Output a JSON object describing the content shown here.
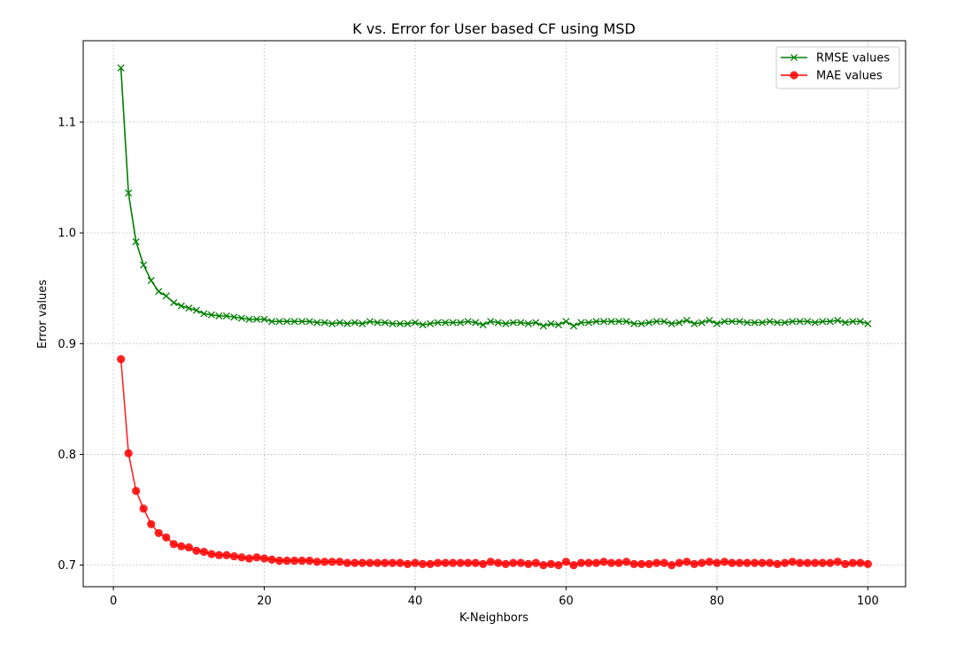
{
  "chart_data": {
    "type": "line",
    "title": "K vs. Error for User based CF using MSD",
    "xlabel": "K-Neighbors",
    "ylabel": "Error values",
    "xlim": [
      -4,
      105
    ],
    "ylim": [
      0.6805,
      1.1735
    ],
    "xticks": [
      0,
      20,
      40,
      60,
      80,
      100
    ],
    "yticks": [
      0.7,
      0.8,
      0.9,
      1.0,
      1.1
    ],
    "ytick_labels": [
      "0.7",
      "0.8",
      "0.9",
      "1.0",
      "1.1"
    ],
    "grid": true,
    "legend_position": "top-right",
    "x": [
      1,
      2,
      3,
      4,
      5,
      6,
      7,
      8,
      9,
      10,
      11,
      12,
      13,
      14,
      15,
      16,
      17,
      18,
      19,
      20,
      21,
      22,
      23,
      24,
      25,
      26,
      27,
      28,
      29,
      30,
      31,
      32,
      33,
      34,
      35,
      36,
      37,
      38,
      39,
      40,
      41,
      42,
      43,
      44,
      45,
      46,
      47,
      48,
      49,
      50,
      51,
      52,
      53,
      54,
      55,
      56,
      57,
      58,
      59,
      60,
      61,
      62,
      63,
      64,
      65,
      66,
      67,
      68,
      69,
      70,
      71,
      72,
      73,
      74,
      75,
      76,
      77,
      78,
      79,
      80,
      81,
      82,
      83,
      84,
      85,
      86,
      87,
      88,
      89,
      90,
      91,
      92,
      93,
      94,
      95,
      96,
      97,
      98,
      99,
      100
    ],
    "series": [
      {
        "name": "RMSE values",
        "color": "#007f00",
        "marker": "x",
        "values": [
          1.149,
          1.036,
          0.992,
          0.971,
          0.957,
          0.947,
          0.943,
          0.937,
          0.934,
          0.932,
          0.93,
          0.927,
          0.926,
          0.925,
          0.925,
          0.924,
          0.923,
          0.922,
          0.922,
          0.922,
          0.92,
          0.92,
          0.92,
          0.92,
          0.92,
          0.92,
          0.919,
          0.919,
          0.918,
          0.919,
          0.918,
          0.919,
          0.918,
          0.92,
          0.919,
          0.919,
          0.918,
          0.918,
          0.918,
          0.919,
          0.917,
          0.918,
          0.919,
          0.919,
          0.919,
          0.919,
          0.92,
          0.919,
          0.917,
          0.92,
          0.919,
          0.918,
          0.919,
          0.919,
          0.918,
          0.919,
          0.916,
          0.918,
          0.917,
          0.92,
          0.916,
          0.919,
          0.919,
          0.92,
          0.92,
          0.92,
          0.92,
          0.92,
          0.918,
          0.918,
          0.919,
          0.92,
          0.92,
          0.918,
          0.919,
          0.921,
          0.918,
          0.919,
          0.921,
          0.918,
          0.92,
          0.92,
          0.92,
          0.919,
          0.919,
          0.919,
          0.92,
          0.919,
          0.919,
          0.92,
          0.92,
          0.92,
          0.919,
          0.92,
          0.92,
          0.921,
          0.919,
          0.92,
          0.92,
          0.918
        ]
      },
      {
        "name": "MAE values",
        "color": "#ff0000",
        "marker": "o",
        "values": [
          0.886,
          0.801,
          0.767,
          0.751,
          0.737,
          0.729,
          0.725,
          0.719,
          0.717,
          0.716,
          0.713,
          0.712,
          0.71,
          0.709,
          0.709,
          0.708,
          0.707,
          0.706,
          0.707,
          0.706,
          0.705,
          0.704,
          0.704,
          0.704,
          0.704,
          0.704,
          0.703,
          0.703,
          0.703,
          0.703,
          0.702,
          0.702,
          0.702,
          0.702,
          0.702,
          0.702,
          0.702,
          0.702,
          0.701,
          0.702,
          0.701,
          0.701,
          0.702,
          0.702,
          0.702,
          0.702,
          0.702,
          0.702,
          0.701,
          0.703,
          0.702,
          0.701,
          0.702,
          0.702,
          0.701,
          0.702,
          0.7,
          0.701,
          0.7,
          0.703,
          0.7,
          0.702,
          0.702,
          0.702,
          0.703,
          0.702,
          0.702,
          0.703,
          0.701,
          0.701,
          0.701,
          0.702,
          0.702,
          0.7,
          0.702,
          0.703,
          0.701,
          0.702,
          0.703,
          0.702,
          0.703,
          0.702,
          0.702,
          0.702,
          0.702,
          0.702,
          0.702,
          0.701,
          0.702,
          0.703,
          0.702,
          0.702,
          0.702,
          0.702,
          0.702,
          0.703,
          0.701,
          0.702,
          0.702,
          0.701
        ]
      }
    ]
  }
}
